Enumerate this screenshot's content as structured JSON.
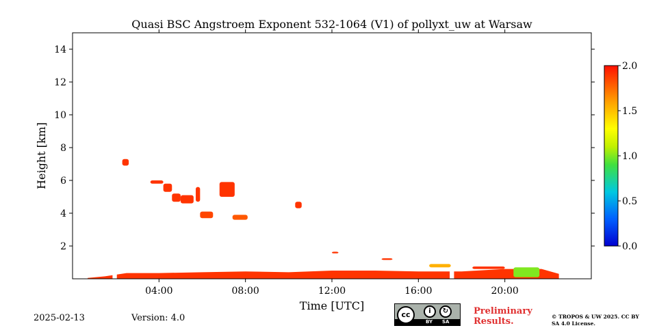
{
  "chart_data": {
    "type": "heatmap",
    "title": "Quasi BSC Angstroem Exponent 532-1064 (V1) of pollyxt_uw at Warsaw",
    "xlabel": "Time [UTC]",
    "ylabel": "Height [km]",
    "xlim": [
      0,
      24
    ],
    "ylim": [
      0,
      15
    ],
    "x_ticks": [
      4,
      8,
      12,
      16,
      20
    ],
    "x_tick_labels": [
      "04:00",
      "08:00",
      "12:00",
      "16:00",
      "20:00"
    ],
    "y_ticks": [
      2,
      4,
      6,
      8,
      10,
      12,
      14
    ],
    "y_tick_labels": [
      "2",
      "4",
      "6",
      "8",
      "10",
      "12",
      "14"
    ],
    "colorbar": {
      "range": [
        0.0,
        2.0
      ],
      "ticks": [
        0.0,
        0.5,
        1.0,
        1.5,
        2.0
      ],
      "tick_labels": [
        "0.0",
        "0.5",
        "1.0",
        "1.5",
        "2.0"
      ],
      "colormap": "jet"
    },
    "boundary_layer": [
      {
        "t": 0.7,
        "top": 0.05,
        "value": 1.95
      },
      {
        "t": 1.5,
        "top": 0.15,
        "value": 1.95
      },
      {
        "t": 2.5,
        "top": 0.35,
        "value": 1.95
      },
      {
        "t": 4.0,
        "top": 0.35,
        "value": 1.9
      },
      {
        "t": 6.0,
        "top": 0.4,
        "value": 1.9
      },
      {
        "t": 8.0,
        "top": 0.45,
        "value": 1.9
      },
      {
        "t": 10.0,
        "top": 0.4,
        "value": 1.9
      },
      {
        "t": 12.0,
        "top": 0.5,
        "value": 1.9
      },
      {
        "t": 14.0,
        "top": 0.5,
        "value": 1.9
      },
      {
        "t": 16.0,
        "top": 0.45,
        "value": 1.9
      },
      {
        "t": 18.0,
        "top": 0.45,
        "value": 1.9
      },
      {
        "t": 20.0,
        "top": 0.6,
        "value": 1.85
      },
      {
        "t": 21.7,
        "top": 0.6,
        "value": 1.85
      },
      {
        "t": 22.5,
        "top": 0.3,
        "value": 1.8
      }
    ],
    "boundary_layer_gaps": [
      [
        1.85,
        2.05
      ],
      [
        17.45,
        17.65
      ]
    ],
    "layers": [
      {
        "t_start": 2.3,
        "t_end": 2.6,
        "h_bottom": 6.9,
        "h_top": 7.3,
        "value": 1.9
      },
      {
        "t_start": 3.6,
        "t_end": 4.2,
        "h_bottom": 5.8,
        "h_top": 6.0,
        "value": 1.9
      },
      {
        "t_start": 4.2,
        "t_end": 4.6,
        "h_bottom": 5.3,
        "h_top": 5.8,
        "value": 1.9
      },
      {
        "t_start": 4.6,
        "t_end": 5.0,
        "h_bottom": 4.7,
        "h_top": 5.2,
        "value": 1.9
      },
      {
        "t_start": 5.0,
        "t_end": 5.6,
        "h_bottom": 4.6,
        "h_top": 5.1,
        "value": 1.9
      },
      {
        "t_start": 5.7,
        "t_end": 5.9,
        "h_bottom": 4.7,
        "h_top": 5.6,
        "value": 1.9
      },
      {
        "t_start": 5.9,
        "t_end": 6.5,
        "h_bottom": 3.7,
        "h_top": 4.1,
        "value": 1.85
      },
      {
        "t_start": 6.8,
        "t_end": 7.5,
        "h_bottom": 5.0,
        "h_top": 5.9,
        "value": 1.9
      },
      {
        "t_start": 7.4,
        "t_end": 8.1,
        "h_bottom": 3.6,
        "h_top": 3.9,
        "value": 1.8
      },
      {
        "t_start": 10.3,
        "t_end": 10.6,
        "h_bottom": 4.3,
        "h_top": 4.7,
        "value": 1.9
      },
      {
        "t_start": 12.0,
        "t_end": 12.3,
        "h_bottom": 1.55,
        "h_top": 1.65,
        "value": 1.9
      },
      {
        "t_start": 14.3,
        "t_end": 14.8,
        "h_bottom": 1.15,
        "h_top": 1.25,
        "value": 1.9
      },
      {
        "t_start": 16.5,
        "t_end": 17.5,
        "h_bottom": 0.7,
        "h_top": 0.9,
        "value": 1.55
      },
      {
        "t_start": 18.5,
        "t_end": 20.0,
        "h_bottom": 0.6,
        "h_top": 0.75,
        "value": 1.9
      },
      {
        "t_start": 20.4,
        "t_end": 21.6,
        "h_bottom": 0.1,
        "h_top": 0.7,
        "value": 1.0
      }
    ]
  },
  "footer": {
    "date": "2025-02-13",
    "version": "Version: 4.0",
    "preliminary": "Preliminary Results.",
    "copyright": "© TROPOS & UW 2025. CC BY SA 4.0 License.",
    "license_badge": {
      "cc": "cc",
      "by": "BY",
      "sa": "SA"
    }
  }
}
